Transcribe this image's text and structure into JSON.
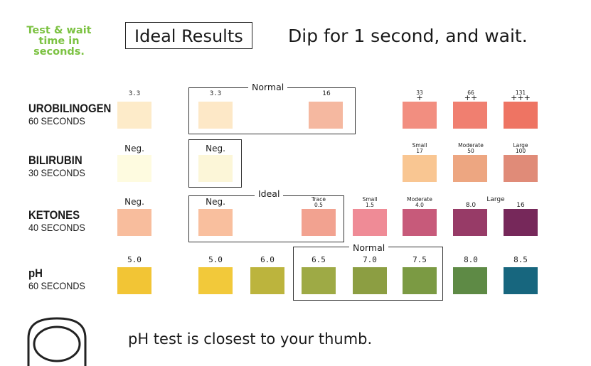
{
  "header": {
    "test_wait": "Test & wait time in seconds.",
    "ideal_results": "Ideal Results",
    "dip": "Dip for 1 second, and wait."
  },
  "rows": {
    "urobilinogen": {
      "name": "UROBILINOGEN",
      "time": "60 SECONDS"
    },
    "bilirubin": {
      "name": "BILIRUBIN",
      "time": "30 SECONDS"
    },
    "ketones": {
      "name": "KETONES",
      "time": "40 SECONDS"
    },
    "ph": {
      "name": "pH",
      "time": "60 SECONDS"
    }
  },
  "urobilinogen": {
    "labels": [
      "3.3",
      "3.3",
      "16",
      "33",
      "+",
      "66",
      "++",
      "131",
      "+++"
    ],
    "normal": "Normal",
    "colors": [
      "#fdebc9",
      "#fde8c7",
      "#f5b8a0",
      "#f28e80",
      "#f07f70",
      "#ee7463"
    ]
  },
  "bilirubin": {
    "labels": [
      "Neg.",
      "Neg.",
      "Small",
      "17",
      "Moderate",
      "50",
      "Large",
      "100"
    ],
    "colors": [
      "#fefbe0",
      "#fcf6d8",
      "#f9c692",
      "#eda681",
      "#e08b78"
    ]
  },
  "ketones": {
    "labels": [
      "Neg.",
      "Neg.",
      "Trace",
      "0.5",
      "Small",
      "1.5",
      "Moderate",
      "4.0",
      "8.0",
      "Large",
      "16"
    ],
    "ideal": "Ideal",
    "colors": [
      "#f8bd9d",
      "#f9bf9e",
      "#f2a290",
      "#ef8b96",
      "#c75a7a",
      "#973b67",
      "#76285a"
    ]
  },
  "ph": {
    "labels": [
      "5.0",
      "5.0",
      "6.0",
      "6.5",
      "7.0",
      "7.5",
      "8.0",
      "8.5"
    ],
    "normal": "Normal",
    "colors": [
      "#f2c535",
      "#f2c93a",
      "#bcb43d",
      "#9eaa45",
      "#8c9e42",
      "#7b9a43",
      "#5e8a45",
      "#17667e"
    ]
  },
  "footer": {
    "thumb_text": "pH test is closest to your thumb."
  },
  "icons": {
    "thumb": "thumb-icon"
  }
}
